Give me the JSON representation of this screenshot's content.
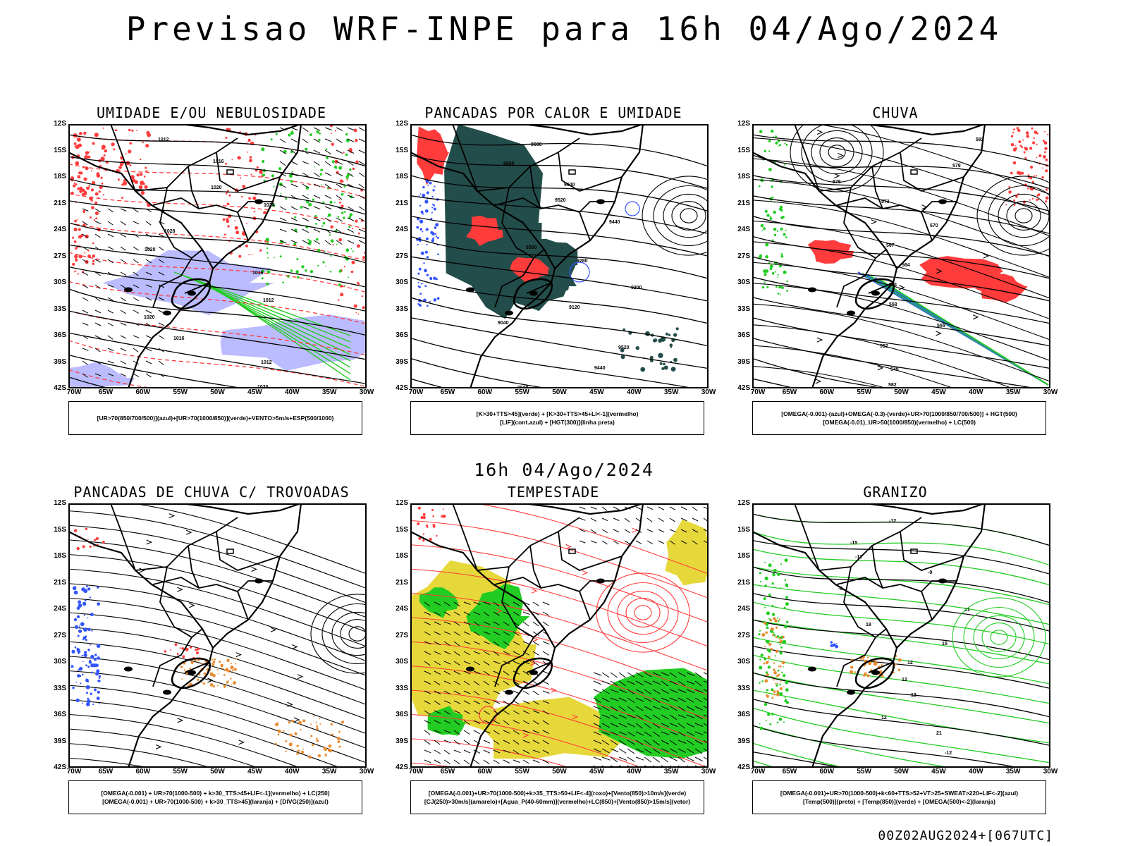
{
  "header": {
    "title": "Previsao WRF-INPE  para 16h 04/Ago/2024"
  },
  "middle_label": "16h 04/Ago/2024",
  "footer": "00Z02AUG2024+[067UTC]",
  "axes": {
    "lat_ticks": [
      "12S",
      "15S",
      "18S",
      "21S",
      "24S",
      "27S",
      "30S",
      "33S",
      "36S",
      "39S",
      "42S"
    ],
    "lon_ticks": [
      "70W",
      "65W",
      "60W",
      "55W",
      "50W",
      "45W",
      "40W",
      "35W",
      "30W"
    ]
  },
  "colors": {
    "contour_black": "#000000",
    "red": "#ff3b3b",
    "green": "#22cc22",
    "blue": "#3355ff",
    "lavender": "#aaaaff",
    "yellow": "#e6d83a",
    "orange": "#e88a2e",
    "darkgreen": "#234d4a"
  },
  "panels": [
    {
      "id": "umidade",
      "title": "UMIDADE E/OU NEBULOSIDADE",
      "legend": [
        "[UR>70(850/700/500)](azul)+[UR>70(1000/850)](verde)+VENTO>5m/s+ESP(500/1000)"
      ],
      "contour_labels": [
        "1012",
        "1016",
        "1020",
        "1024",
        "1028",
        "1020",
        "1016",
        "1012",
        "1020",
        "1016",
        "1012",
        "1020"
      ]
    },
    {
      "id": "pancadas-calor",
      "title": "PANCADAS POR CALOR E UMIDADE",
      "legend": [
        "[K>30+TTS>45](verde) + [K>30+TTS>45+LI<-1](vermelho)",
        "[LIF](cont.azul) + [HGT(300)](linha preta)"
      ],
      "contour_labels": [
        "9600",
        "9600",
        "9600",
        "9520",
        "9440",
        "9360",
        "9280",
        "9200",
        "9120",
        "9040",
        "9520",
        "9440",
        "9520"
      ]
    },
    {
      "id": "chuva",
      "title": "CHUVA",
      "legend": [
        "[OMEGA(-0.001)-(azul)+OMEGA(-0.3)-(verde)+UR>70(1000/850/700/500)] + HGT(500)",
        "[OMEGA(-0.01)_UR>50(1000/850)(vermelho) + LC(500)"
      ],
      "contour_labels": [
        "582",
        "579",
        "576",
        "573",
        "570",
        "567",
        "564",
        "561",
        "558",
        "555",
        "552",
        "549",
        "582"
      ]
    },
    {
      "id": "pancadas-trovoadas",
      "title": "PANCADAS DE CHUVA C/ TROVOADAS",
      "legend": [
        "[OMEGA(-0.001) + UR>70(1000-500) + k>30_TTS>45+LIF<-1](vermelho) + LC(250)",
        "[OMEGA(-0.001) + UR>70(1000-500) + k>30_TTS>45](laranja) + [DIVG(250)](azul)"
      ]
    },
    {
      "id": "tempestade",
      "title": "TEMPESTADE",
      "legend": [
        "[OMEGA(-0.001)+UR>70(1000-500)+k>35_TTS>50+LIF<-4](roxo)+[Vento(850)>10m/s](verde)",
        "[CJ(250)>30m/s](amarelo)+[Agua_P(40-60mm)](vermelho)+LC(850)+[Vento(850)>15m/s](vetor)"
      ]
    },
    {
      "id": "granizo",
      "title": "GRANIZO",
      "legend": [
        "[OMEGA(-0.001)+UR>70(1000-500)+k<60+TTS>52+VT>25+SWEAT>220+LIF<-2](azul)",
        "[Temp(500)](preto) + [Temp(850)](verde) + [OMEGA(500)<-2](laranja)"
      ],
      "contour_labels": [
        "-12",
        "-15",
        "-12",
        "-9",
        "-6",
        "21",
        "18",
        "15",
        "12",
        "12",
        "12",
        "12",
        "21",
        "-12",
        "-15"
      ]
    }
  ]
}
